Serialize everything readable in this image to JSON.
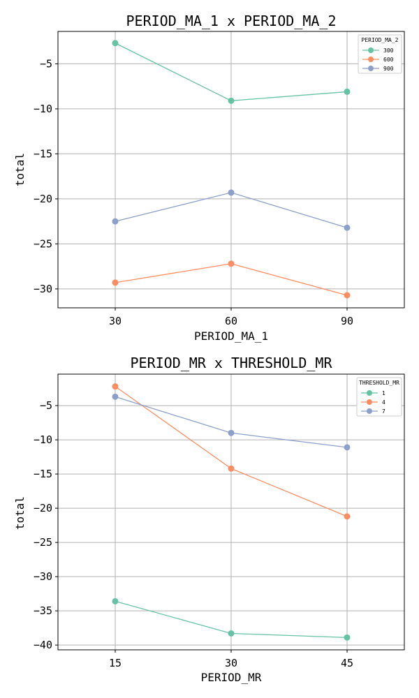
{
  "colors": {
    "s1": "#66c2a5",
    "s2": "#fc8d62",
    "s3": "#8da0cb"
  },
  "chart_data": [
    {
      "type": "line",
      "title": "PERIOD_MA_1 x PERIOD_MA_2",
      "xlabel": "PERIOD_MA_1",
      "ylabel": "total",
      "categories": [
        "30",
        "60",
        "90"
      ],
      "xticks": [
        "30",
        "60",
        "90"
      ],
      "yticks": [
        -5,
        -10,
        -15,
        -20,
        -25,
        -30
      ],
      "ytick_labels": [
        "−5",
        "−10",
        "−15",
        "−20",
        "−25",
        "−30"
      ],
      "ylim": [
        -32.1,
        -1.4
      ],
      "grid": true,
      "legend": {
        "title": "PERIOD_MA_2",
        "position": "top-right"
      },
      "series": [
        {
          "name": "300",
          "color": "#66c2a5",
          "values": [
            -2.7,
            -9.1,
            -8.1
          ]
        },
        {
          "name": "600",
          "color": "#fc8d62",
          "values": [
            -29.3,
            -27.2,
            -30.7
          ]
        },
        {
          "name": "900",
          "color": "#8da0cb",
          "values": [
            -22.5,
            -19.3,
            -23.2
          ]
        }
      ]
    },
    {
      "type": "line",
      "title": "PERIOD_MR x THRESHOLD_MR",
      "xlabel": "PERIOD_MR",
      "ylabel": "total",
      "categories": [
        "15",
        "30",
        "45"
      ],
      "xticks": [
        "15",
        "30",
        "45"
      ],
      "yticks": [
        -5,
        -10,
        -15,
        -20,
        -25,
        -30,
        -35,
        -40
      ],
      "ytick_labels": [
        "−5",
        "−10",
        "−15",
        "−20",
        "−25",
        "−30",
        "−35",
        "−40"
      ],
      "ylim": [
        -40.7,
        -0.4
      ],
      "grid": true,
      "legend": {
        "title": "THRESHOLD_MR",
        "position": "top-right"
      },
      "series": [
        {
          "name": "1",
          "color": "#66c2a5",
          "values": [
            -33.6,
            -38.3,
            -38.9
          ]
        },
        {
          "name": "4",
          "color": "#fc8d62",
          "values": [
            -2.2,
            -14.2,
            -21.2
          ]
        },
        {
          "name": "7",
          "color": "#8da0cb",
          "values": [
            -3.7,
            -9.0,
            -11.1
          ]
        }
      ]
    }
  ]
}
